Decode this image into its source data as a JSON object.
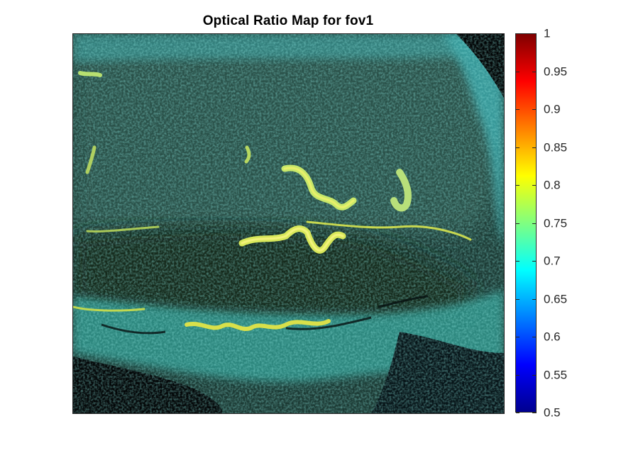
{
  "title": "Optical Ratio Map for fov1",
  "colorbar": {
    "colormap": "jet",
    "min": 0.5,
    "max": 1,
    "ticks": [
      "1",
      "0.95",
      "0.9",
      "0.85",
      "0.8",
      "0.75",
      "0.7",
      "0.65",
      "0.6",
      "0.55",
      "0.5"
    ]
  },
  "image": {
    "description": "fluorescence ratio map of tissue section, teal/cyan cells with yellow-green ridge structures"
  }
}
